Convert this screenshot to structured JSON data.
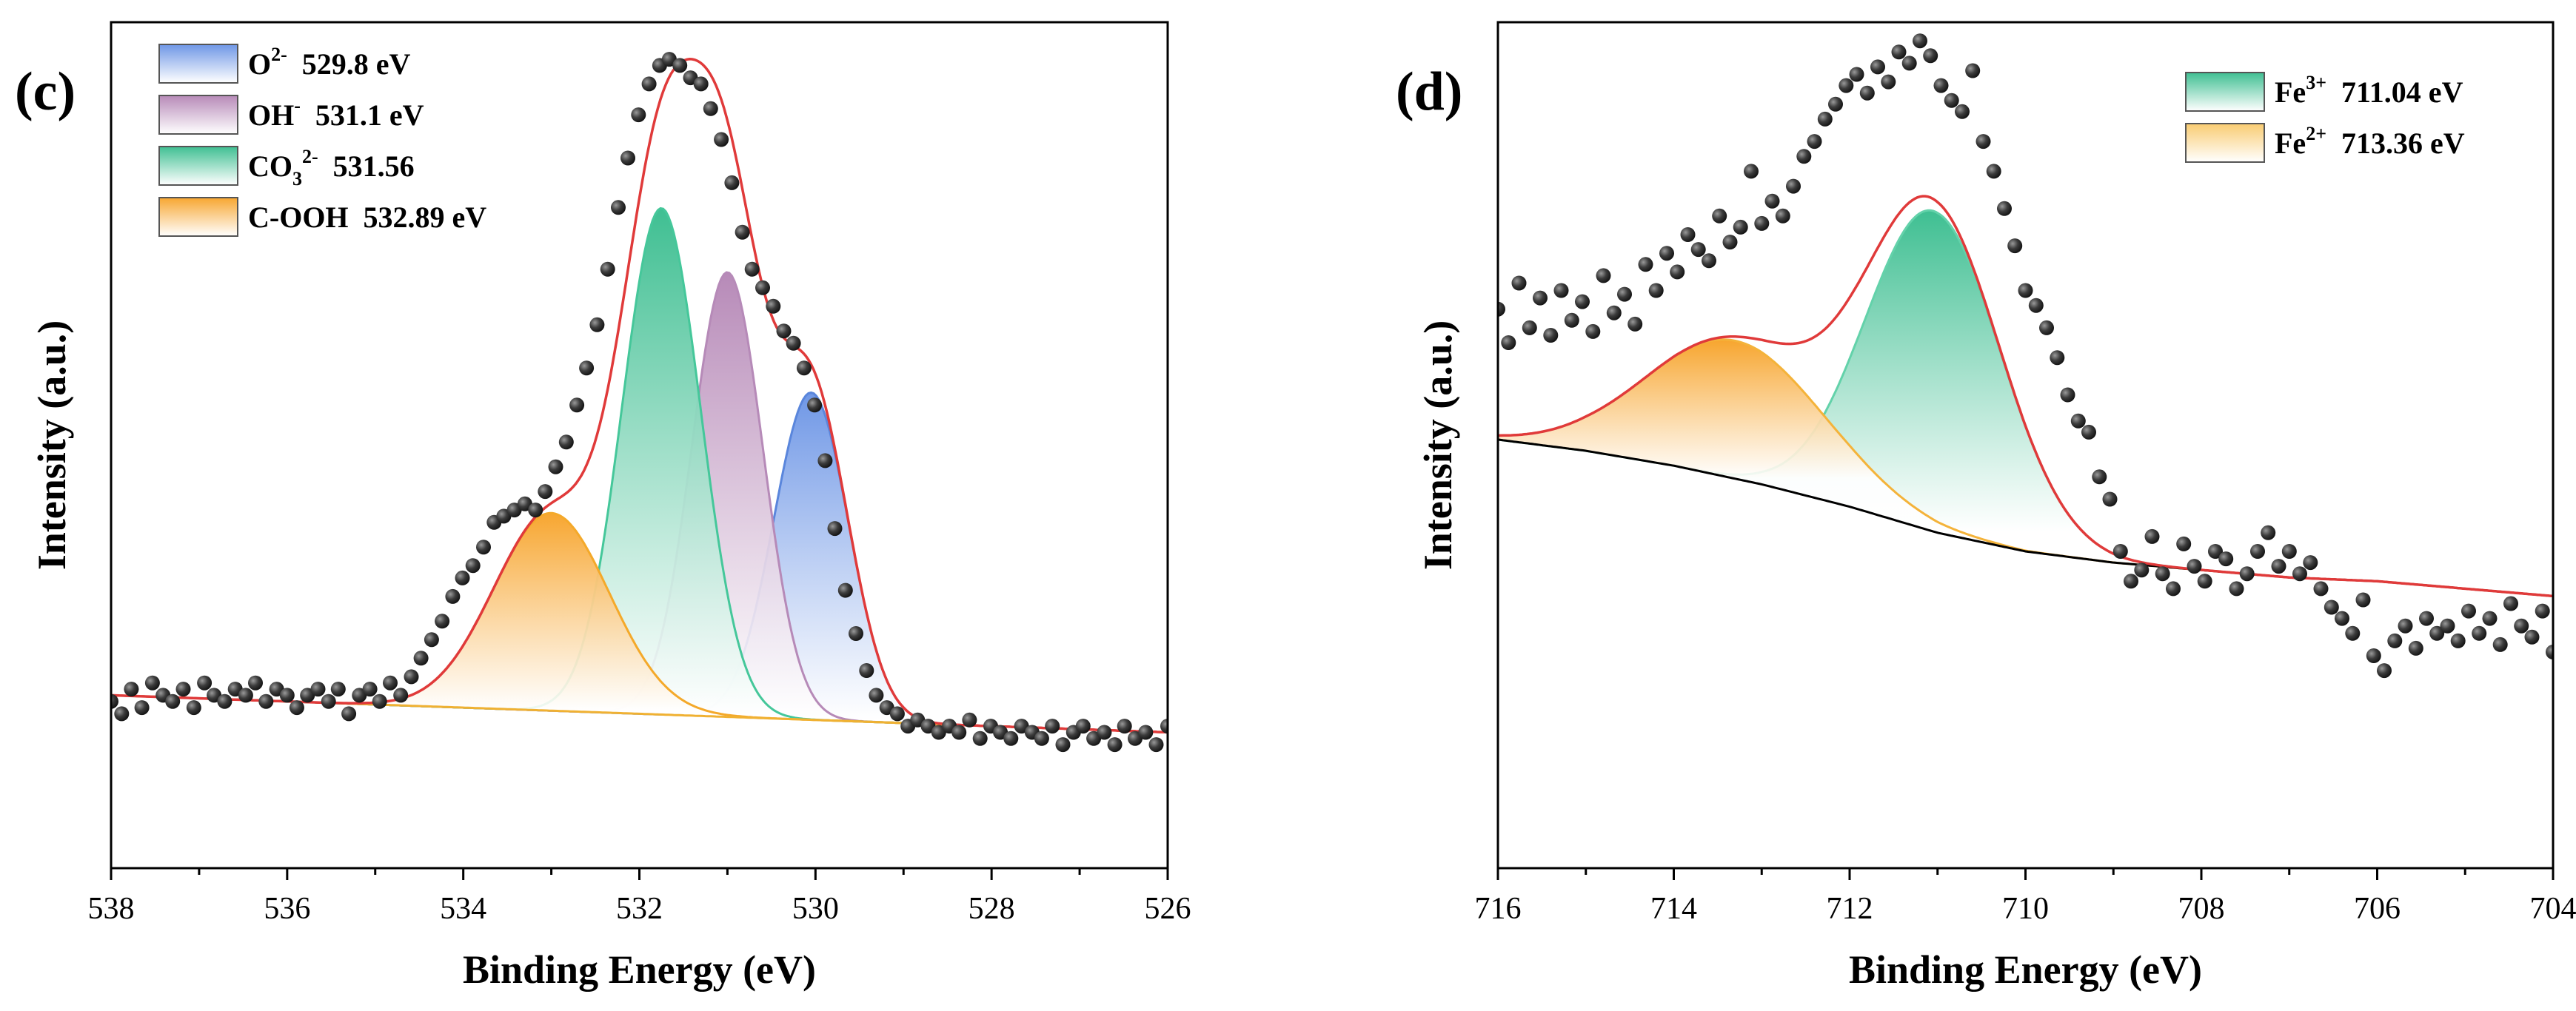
{
  "chart_data": [
    {
      "panel": "(c)",
      "type": "area",
      "xlabel": "Binding Energy (eV)",
      "ylabel": "Intensity (a.u.)",
      "xlim": [
        538,
        526
      ],
      "xaxis_reversed": true,
      "xticks": [
        "538",
        "536",
        "534",
        "532",
        "530",
        "528",
        "526"
      ],
      "yticks_shown": false,
      "legend_position": "top-left",
      "legend": [
        {
          "base": "O",
          "sup": "2-",
          "sub": "",
          "tail": "",
          "value": "529.8 eV",
          "color": "#6f97e6"
        },
        {
          "base": "OH",
          "sup": "-",
          "sub": "",
          "tail": "",
          "value": "531.1 eV",
          "color": "#b78ab8"
        },
        {
          "base": "CO",
          "sup": "2-",
          "sub": "3",
          "tail": "",
          "value": "531.56",
          "color": "#3fbf92"
        },
        {
          "base": "C-OOH",
          "sup": "",
          "sub": "",
          "tail": "",
          "value": "532.89 eV",
          "color": "#f7a630"
        }
      ],
      "baseline": {
        "x": [
          538,
          526
        ],
        "y": [
          0.03,
          -0.03
        ]
      },
      "peaks": [
        {
          "name": "O2- 529.8 eV",
          "center": 530.05,
          "height": 0.53,
          "fwhm": 1.0,
          "color": "#6f97e6",
          "line": "#5a86dc"
        },
        {
          "name": "OH- 531.1 eV",
          "center": 531.0,
          "height": 0.72,
          "fwhm": 0.95,
          "color": "#b78ab8",
          "line": "#b68ab8"
        },
        {
          "name": "CO3 2- 531.56",
          "center": 531.75,
          "height": 0.82,
          "fwhm": 1.05,
          "color": "#3fbf92",
          "line": "#45c79a"
        },
        {
          "name": "C-OOH 532.89 eV",
          "center": 533.0,
          "height": 0.32,
          "fwhm": 1.55,
          "color": "#f7a630",
          "line": "#f4a92a"
        }
      ],
      "envelope_color": "#e03a3a",
      "data_points": {
        "x": [
          538.0,
          537.88,
          537.77,
          537.65,
          537.53,
          537.41,
          537.3,
          537.18,
          537.06,
          536.94,
          536.83,
          536.71,
          536.59,
          536.47,
          536.36,
          536.24,
          536.12,
          536.0,
          535.89,
          535.77,
          535.65,
          535.53,
          535.42,
          535.3,
          535.18,
          535.06,
          534.95,
          534.83,
          534.71,
          534.59,
          534.48,
          534.36,
          534.24,
          534.12,
          534.01,
          533.89,
          533.77,
          533.65,
          533.54,
          533.42,
          533.3,
          533.18,
          533.07,
          532.95,
          532.83,
          532.71,
          532.6,
          532.48,
          532.36,
          532.24,
          532.13,
          532.01,
          531.89,
          531.77,
          531.66,
          531.54,
          531.42,
          531.3,
          531.19,
          531.07,
          530.95,
          530.83,
          530.72,
          530.6,
          530.48,
          530.36,
          530.25,
          530.13,
          530.01,
          529.89,
          529.78,
          529.66,
          529.54,
          529.42,
          529.31,
          529.19,
          529.07,
          528.95,
          528.84,
          528.72,
          528.6,
          528.48,
          528.37,
          528.25,
          528.13,
          528.01,
          527.9,
          527.78,
          527.66,
          527.54,
          527.43,
          527.31,
          527.19,
          527.07,
          526.96,
          526.84,
          526.72,
          526.6,
          526.49,
          526.37,
          526.25,
          526.13,
          526.0
        ],
        "y": [
          0.02,
          0.0,
          0.04,
          0.01,
          0.05,
          0.03,
          0.02,
          0.04,
          0.01,
          0.05,
          0.03,
          0.02,
          0.04,
          0.03,
          0.05,
          0.02,
          0.04,
          0.03,
          0.01,
          0.03,
          0.04,
          0.02,
          0.04,
          0.0,
          0.03,
          0.04,
          0.02,
          0.05,
          0.03,
          0.06,
          0.09,
          0.12,
          0.15,
          0.19,
          0.22,
          0.24,
          0.27,
          0.31,
          0.32,
          0.33,
          0.34,
          0.33,
          0.36,
          0.4,
          0.44,
          0.5,
          0.56,
          0.63,
          0.72,
          0.82,
          0.9,
          0.97,
          1.02,
          1.05,
          1.06,
          1.05,
          1.03,
          1.02,
          0.98,
          0.93,
          0.86,
          0.78,
          0.72,
          0.69,
          0.66,
          0.62,
          0.6,
          0.56,
          0.5,
          0.41,
          0.3,
          0.2,
          0.13,
          0.07,
          0.03,
          0.01,
          0.0,
          -0.02,
          -0.01,
          -0.02,
          -0.03,
          -0.02,
          -0.03,
          -0.01,
          -0.04,
          -0.02,
          -0.03,
          -0.04,
          -0.02,
          -0.03,
          -0.04,
          -0.02,
          -0.05,
          -0.03,
          -0.02,
          -0.04,
          -0.03,
          -0.05,
          -0.02,
          -0.04,
          -0.03,
          -0.05,
          -0.02
        ]
      }
    },
    {
      "panel": "(d)",
      "type": "area",
      "xlabel": "Binding Energy (eV)",
      "ylabel": "Intensity (a.u.)",
      "xlim": [
        716,
        704
      ],
      "xaxis_reversed": true,
      "xticks": [
        "716",
        "714",
        "712",
        "710",
        "708",
        "706",
        "704"
      ],
      "yticks_shown": false,
      "legend_position": "top-right",
      "legend": [
        {
          "base": "Fe",
          "sup": "3+",
          "sub": "",
          "tail": "",
          "value": "711.04 eV",
          "color": "#3fbf92"
        },
        {
          "base": "Fe",
          "sup": "2+",
          "sub": "",
          "tail": "",
          "value": "713.36 eV",
          "color": "#f9cc72"
        }
      ],
      "baseline": {
        "x": [
          716,
          715,
          714,
          713,
          712,
          711,
          710,
          709,
          708,
          707,
          706,
          705,
          704
        ],
        "y": [
          0.4,
          0.37,
          0.33,
          0.28,
          0.22,
          0.15,
          0.1,
          0.07,
          0.05,
          0.03,
          0.02,
          0.0,
          -0.02
        ]
      },
      "peaks": [
        {
          "name": "Fe3+ 711.04 eV",
          "center": 711.05,
          "height": 0.86,
          "fwhm": 1.8,
          "color": "#3fbf92",
          "line": "#63d2aa"
        },
        {
          "name": "Fe2+ 713.36 eV",
          "center": 713.3,
          "height": 0.37,
          "fwhm": 2.4,
          "color": "#f7a630",
          "line": "#f4b33a"
        }
      ],
      "envelope_color": "#e03a3a",
      "data_points": {
        "x": [
          716.0,
          715.88,
          715.76,
          715.64,
          715.52,
          715.4,
          715.28,
          715.16,
          715.04,
          714.92,
          714.8,
          714.68,
          714.56,
          714.44,
          714.32,
          714.2,
          714.08,
          713.96,
          713.84,
          713.72,
          713.6,
          713.48,
          713.36,
          713.24,
          713.12,
          713.0,
          712.88,
          712.76,
          712.64,
          712.52,
          712.4,
          712.28,
          712.16,
          712.04,
          711.92,
          711.8,
          711.68,
          711.56,
          711.44,
          711.32,
          711.2,
          711.08,
          710.96,
          710.84,
          710.72,
          710.6,
          710.48,
          710.36,
          710.24,
          710.12,
          710.0,
          709.88,
          709.76,
          709.64,
          709.52,
          709.4,
          709.28,
          709.16,
          709.04,
          708.92,
          708.8,
          708.68,
          708.56,
          708.44,
          708.32,
          708.2,
          708.08,
          707.96,
          707.84,
          707.72,
          707.6,
          707.48,
          707.36,
          707.24,
          707.12,
          707.0,
          706.88,
          706.76,
          706.64,
          706.52,
          706.4,
          706.28,
          706.16,
          706.04,
          705.92,
          705.8,
          705.68,
          705.56,
          705.44,
          705.32,
          705.2,
          705.08,
          704.96,
          704.84,
          704.72,
          704.6,
          704.48,
          704.36,
          704.24,
          704.12,
          704.0
        ],
        "y": [
          0.75,
          0.66,
          0.82,
          0.7,
          0.78,
          0.68,
          0.8,
          0.72,
          0.77,
          0.69,
          0.84,
          0.74,
          0.79,
          0.71,
          0.87,
          0.8,
          0.9,
          0.85,
          0.95,
          0.91,
          0.88,
          1.0,
          0.93,
          0.97,
          1.12,
          0.98,
          1.04,
          1.0,
          1.08,
          1.16,
          1.2,
          1.26,
          1.3,
          1.35,
          1.38,
          1.33,
          1.4,
          1.36,
          1.44,
          1.41,
          1.47,
          1.43,
          1.35,
          1.31,
          1.28,
          1.39,
          1.2,
          1.12,
          1.02,
          0.92,
          0.8,
          0.76,
          0.7,
          0.62,
          0.52,
          0.45,
          0.42,
          0.3,
          0.24,
          0.1,
          0.02,
          0.05,
          0.14,
          0.04,
          0.0,
          0.12,
          0.06,
          0.02,
          0.1,
          0.08,
          0.0,
          0.04,
          0.1,
          0.15,
          0.06,
          0.1,
          0.04,
          0.07,
          0.0,
          -0.05,
          -0.08,
          -0.12,
          -0.03,
          -0.18,
          -0.22,
          -0.14,
          -0.1,
          -0.16,
          -0.08,
          -0.12,
          -0.1,
          -0.14,
          -0.06,
          -0.12,
          -0.08,
          -0.15,
          -0.04,
          -0.1,
          -0.13,
          -0.06,
          -0.17
        ]
      }
    }
  ]
}
